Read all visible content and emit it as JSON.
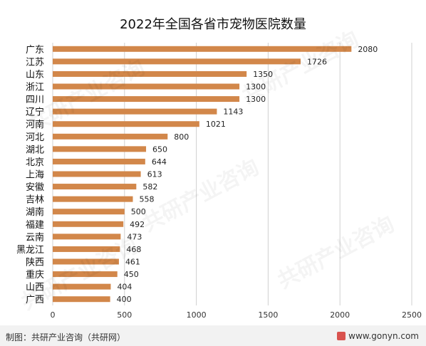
{
  "chart_data": {
    "type": "bar",
    "orientation": "horizontal",
    "title": "2022年全国各省市宠物医院数量",
    "categories": [
      "广东",
      "江苏",
      "山东",
      "浙江",
      "四川",
      "辽宁",
      "河南",
      "河北",
      "湖北",
      "北京",
      "上海",
      "安徽",
      "吉林",
      "湖南",
      "福建",
      "云南",
      "黑龙江",
      "陕西",
      "重庆",
      "山西",
      "广西"
    ],
    "values": [
      2080,
      1726,
      1350,
      1300,
      1300,
      1143,
      1021,
      800,
      650,
      644,
      613,
      582,
      558,
      500,
      492,
      473,
      468,
      461,
      450,
      404,
      400
    ],
    "xlim": [
      0,
      2500
    ],
    "xticks": [
      0,
      500,
      1000,
      1500,
      2000,
      2500
    ],
    "grid": true,
    "bar_color": "#d2874a",
    "grid_color": "#d0d0d0"
  },
  "footer": {
    "source": "制图：共研产业咨询（共研网）",
    "site": "www.gonyn.com"
  },
  "watermark": "共研产业咨询"
}
